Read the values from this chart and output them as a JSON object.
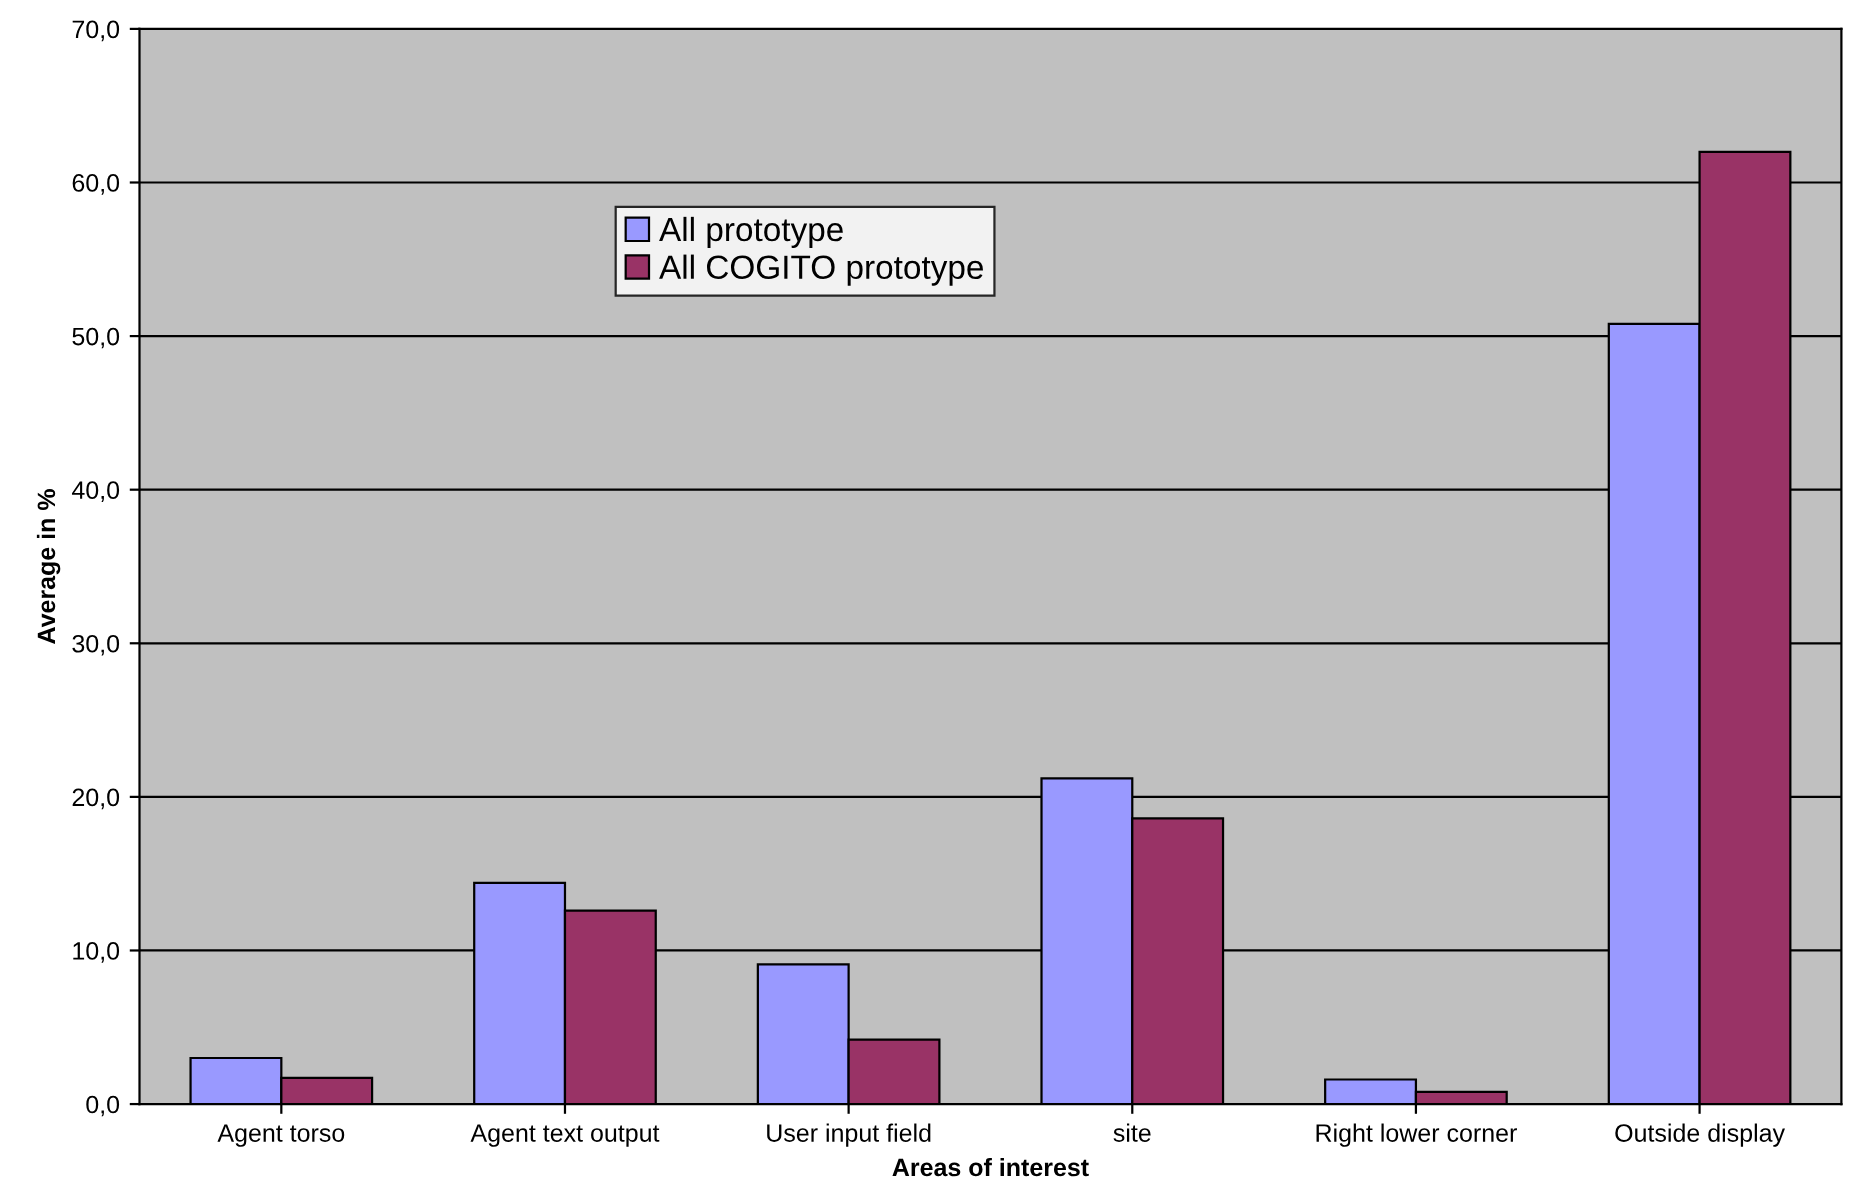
{
  "chart_data": {
    "type": "bar",
    "xlabel": "Areas of interest",
    "ylabel": "Average in %",
    "categories": [
      "Agent torso",
      "Agent text output",
      "User input field",
      "site",
      "Right lower corner",
      "Outside display"
    ],
    "series": [
      {
        "name": "All prototype",
        "color": "#9999ff",
        "values": [
          3.0,
          14.4,
          9.1,
          21.2,
          1.6,
          50.8
        ]
      },
      {
        "name": "All COGITO prototype",
        "color": "#993366",
        "values": [
          1.7,
          12.6,
          4.2,
          18.6,
          0.8,
          62.0
        ]
      }
    ],
    "ylim": [
      0,
      70
    ],
    "yticks": [
      {
        "value": 0,
        "label": "0,0"
      },
      {
        "value": 10,
        "label": "10,0"
      },
      {
        "value": 20,
        "label": "20,0"
      },
      {
        "value": 30,
        "label": "30,0"
      },
      {
        "value": 40,
        "label": "40,0"
      },
      {
        "value": 50,
        "label": "50,0"
      },
      {
        "value": 60,
        "label": "60,0"
      },
      {
        "value": 70,
        "label": "70,0"
      }
    ],
    "grid": "y",
    "legend": "top left"
  }
}
